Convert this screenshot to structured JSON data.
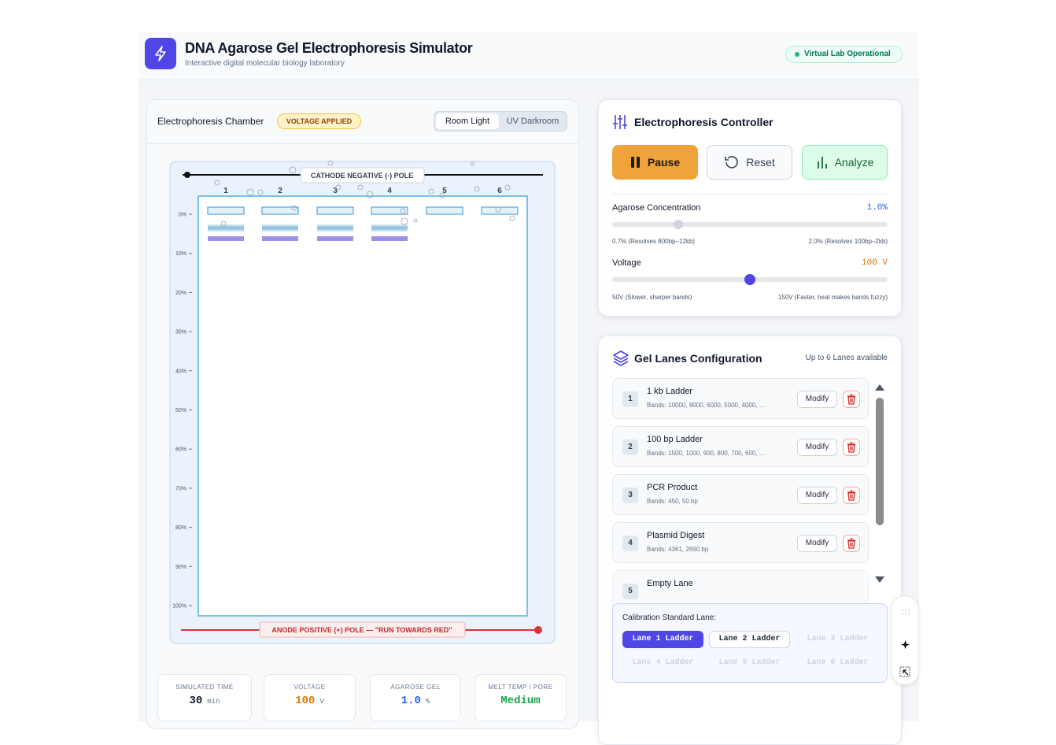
{
  "header": {
    "title": "DNA Agarose Gel Electrophoresis Simulator",
    "subtitle": "Interactive digital molecular biology laboratory",
    "status": "Virtual Lab Operational"
  },
  "chamber": {
    "title": "Electrophoresis Chamber",
    "badge": "VOLTAGE APPLIED",
    "toggle": [
      "Room Light",
      "UV Darkroom"
    ],
    "cathode_label": "CATHODE NEGATIVE (-) POLE",
    "anode_label": "ANODE POSITIVE (+) POLE — \"RUN TOWARDS RED\"",
    "lane_numbers": [
      "1",
      "2",
      "3",
      "4",
      "5",
      "6"
    ],
    "depth_labels": [
      "0%",
      "10%",
      "20%",
      "30%",
      "40%",
      "50%",
      "60%",
      "70%",
      "80%",
      "90%",
      "100%"
    ],
    "stats": [
      {
        "label": "SIMULATED TIME",
        "value": "30",
        "unit": "min"
      },
      {
        "label": "VOLTAGE",
        "value": "100",
        "unit": "V"
      },
      {
        "label": "AGAROSE GEL",
        "value": "1.0",
        "unit": "%"
      },
      {
        "label": "MELT TEMP / PORE",
        "value": "Medium"
      }
    ]
  },
  "controller": {
    "title": "Electrophoresis Controller",
    "buttons": [
      "Pause",
      "Reset",
      "Analyze"
    ],
    "agarose": {
      "label": "Agarose Concentration",
      "value": "1.0%",
      "min_note": "0.7% (Resolves 800bp–12kb)",
      "max_note": "2.0% (Resolves 100bp–2kb)"
    },
    "voltage": {
      "label": "Voltage",
      "value": "100 V",
      "min_note": "50V (Slower, sharper bands)",
      "max_note": "150V (Faster, heat makes bands fuzzy)"
    }
  },
  "lanes": {
    "title": "Gel Lanes Configuration",
    "note": "Up to 6 Lanes available",
    "action": "Modify",
    "items": [
      {
        "number": "1",
        "name": "1 kb Ladder",
        "bands": "Bands: 10000, 8000, 6000, 5000, 4000, ..."
      },
      {
        "number": "2",
        "name": "100 bp Ladder",
        "bands": "Bands: 1500, 1000, 900, 800, 700, 600, ..."
      },
      {
        "number": "3",
        "name": "PCR Product",
        "bands": "Bands: 450, 50 bp"
      },
      {
        "number": "4",
        "name": "Plasmid Digest",
        "bands": "Bands: 4361, 2690 bp"
      },
      {
        "number": "5",
        "name": "Empty Lane"
      }
    ],
    "calibration": {
      "label": "Calibration Standard Lane:",
      "options": [
        "Lane 1 Ladder",
        "Lane 2 Ladder",
        "Lane 3 Ladder",
        "Lane 4 Ladder",
        "Lane 5 Ladder",
        "Lane 6 Ladder"
      ]
    }
  }
}
